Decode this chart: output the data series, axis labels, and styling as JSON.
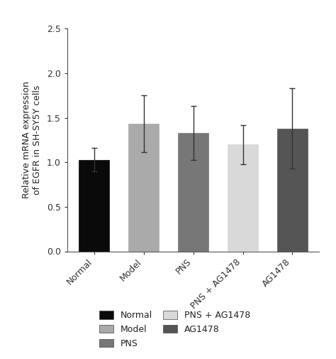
{
  "categories": [
    "Normal",
    "Model",
    "PNS",
    "PNS + AG1478",
    "AG1478"
  ],
  "values": [
    1.03,
    1.43,
    1.33,
    1.2,
    1.38
  ],
  "errors": [
    0.13,
    0.32,
    0.3,
    0.22,
    0.45
  ],
  "bar_colors": [
    "#0a0a0a",
    "#aaaaaa",
    "#777777",
    "#d9d9d9",
    "#555555"
  ],
  "ylabel": "Relative mRNA expression\nof EGFR in SH-SY5Y cells",
  "ylim": [
    0.0,
    2.5
  ],
  "yticks": [
    0.0,
    0.5,
    1.0,
    1.5,
    2.0,
    2.5
  ],
  "background_color": "#ffffff",
  "legend_labels": [
    "Normal",
    "Model",
    "PNS",
    "PNS + AG1478",
    "AG1478"
  ],
  "legend_colors": [
    "#0a0a0a",
    "#aaaaaa",
    "#777777",
    "#d9d9d9",
    "#555555"
  ],
  "error_color": "#333333",
  "bar_width": 0.62,
  "capsize": 3,
  "label_fontsize": 9,
  "tick_fontsize": 9,
  "legend_fontsize": 9
}
